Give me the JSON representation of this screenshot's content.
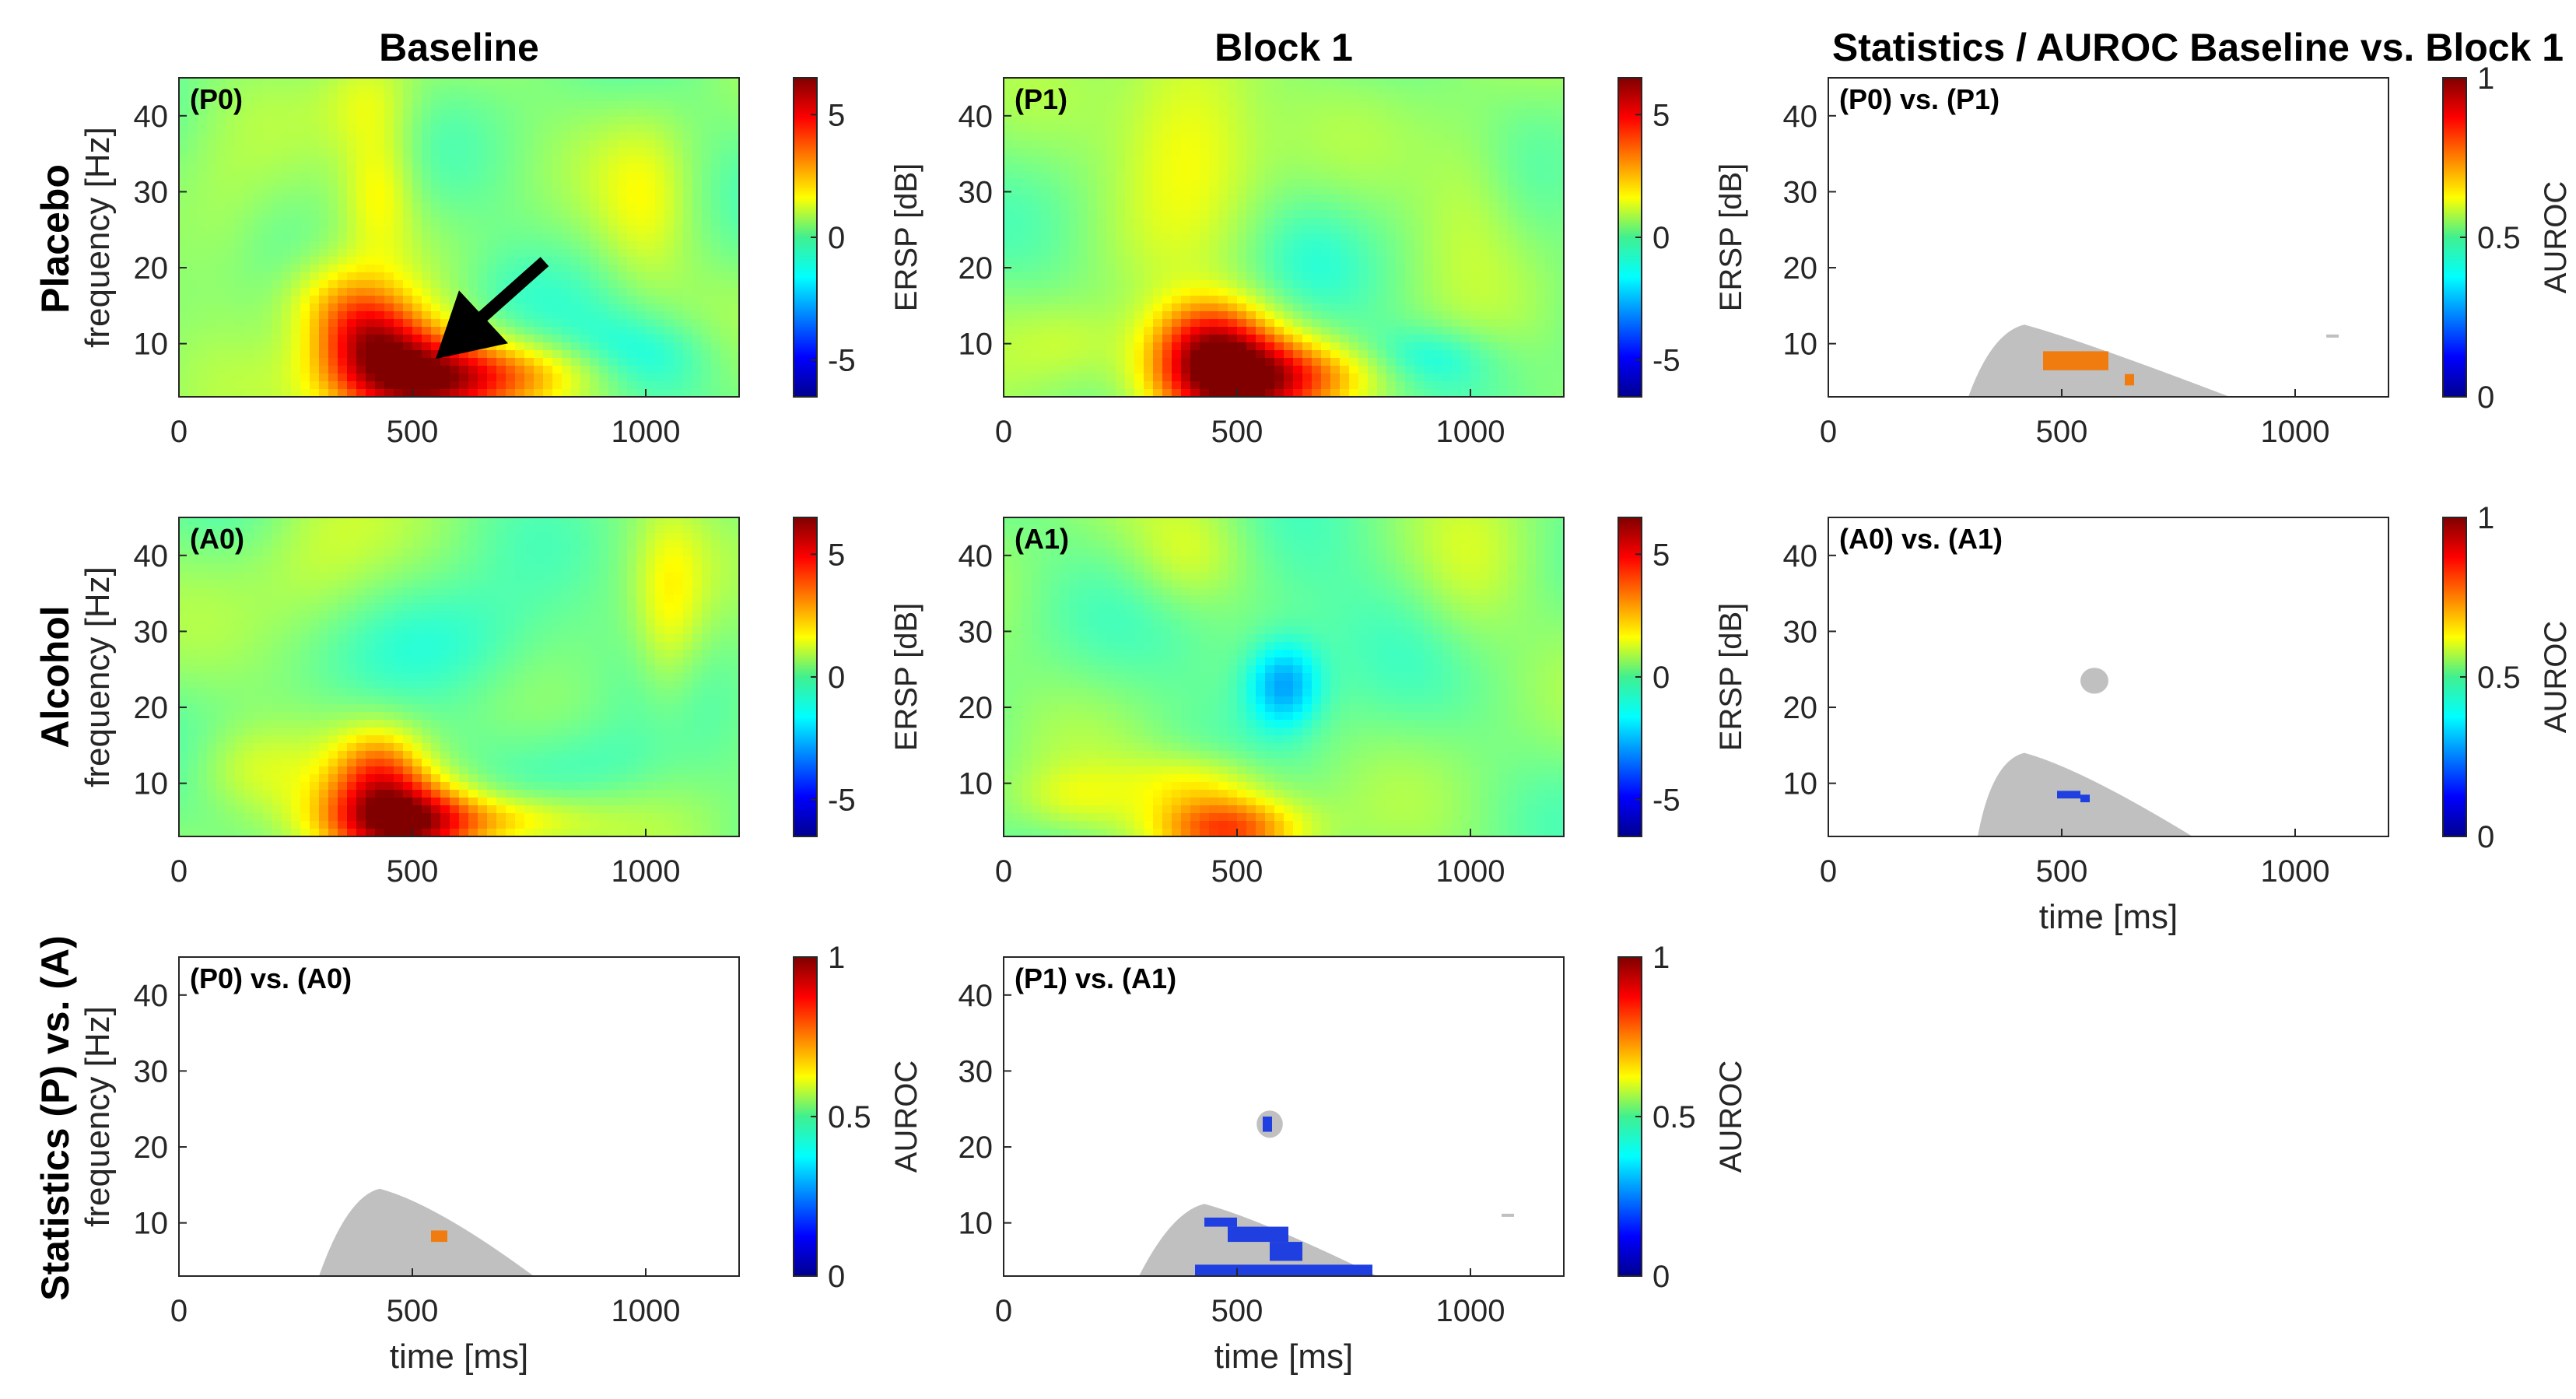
{
  "figure": {
    "column_titles": [
      "Baseline",
      "Block 1",
      "Statistics / AUROC Baseline vs. Block 1"
    ],
    "row_titles": [
      "Placebo",
      "Alcohol",
      "Statistics (P) vs. (A)"
    ],
    "colors": {
      "significant_mask": "#c0c0c0",
      "auroc_high": "#f07c10",
      "auroc_low": "#1f3fe0",
      "arrow": "#000000"
    }
  },
  "chart_data": [
    {
      "id": "P0",
      "type": "heatmap",
      "panel_label": "(P0)",
      "xlabel": "",
      "ylabel": "frequency [Hz]",
      "xlim": [
        0,
        1200
      ],
      "ylim": [
        3,
        45
      ],
      "xticks": [
        0,
        500,
        1000
      ],
      "yticks": [
        10,
        20,
        30,
        40
      ],
      "colorbar": {
        "label": "ERSP [dB]",
        "range": [
          -6.5,
          6.5
        ],
        "ticks": [
          -5,
          0,
          5
        ],
        "colormap": "jet"
      },
      "annotation": {
        "type": "arrow",
        "points_to_ms": 550,
        "points_to_hz": 8
      },
      "blobs": [
        {
          "t": 500,
          "f": 5,
          "st": 130,
          "sf": 4.5,
          "v": 6.3
        },
        {
          "t": 410,
          "f": 11,
          "st": 80,
          "sf": 4,
          "v": 3.5
        },
        {
          "t": 720,
          "f": 6,
          "st": 150,
          "sf": 3,
          "v": 2.2
        },
        {
          "t": 340,
          "f": 16,
          "st": 90,
          "sf": 4,
          "v": 1.6
        },
        {
          "t": 430,
          "f": 30,
          "st": 55,
          "sf": 6,
          "v": 1.6
        },
        {
          "t": 410,
          "f": 42,
          "st": 70,
          "sf": 5,
          "v": 1.2
        },
        {
          "t": 1000,
          "f": 28,
          "st": 70,
          "sf": 8,
          "v": 1.2
        },
        {
          "t": 100,
          "f": 24,
          "st": 80,
          "sf": 8,
          "v": 0.8
        },
        {
          "t": 1000,
          "f": 8,
          "st": 120,
          "sf": 4,
          "v": -1.4
        },
        {
          "t": 700,
          "f": 16,
          "st": 100,
          "sf": 5,
          "v": -0.6
        }
      ]
    },
    {
      "id": "P1",
      "type": "heatmap",
      "panel_label": "(P1)",
      "xlabel": "",
      "ylabel": "",
      "xlim": [
        0,
        1200
      ],
      "ylim": [
        3,
        45
      ],
      "xticks": [
        0,
        500,
        1000
      ],
      "yticks": [
        10,
        20,
        30,
        40
      ],
      "colorbar": {
        "label": "ERSP [dB]",
        "range": [
          -6.5,
          6.5
        ],
        "ticks": [
          -5,
          0,
          5
        ],
        "colormap": "jet"
      },
      "blobs": [
        {
          "t": 480,
          "f": 5,
          "st": 120,
          "sf": 4.5,
          "v": 6.4
        },
        {
          "t": 440,
          "f": 11,
          "st": 90,
          "sf": 4,
          "v": 3.4
        },
        {
          "t": 400,
          "f": 38,
          "st": 110,
          "sf": 9,
          "v": 2.0
        },
        {
          "t": 680,
          "f": 6,
          "st": 130,
          "sf": 3,
          "v": 1.8
        },
        {
          "t": 150,
          "f": 10,
          "st": 90,
          "sf": 4,
          "v": 0.9
        },
        {
          "t": 1000,
          "f": 30,
          "st": 80,
          "sf": 8,
          "v": 0.9
        },
        {
          "t": 900,
          "f": 8,
          "st": 110,
          "sf": 3,
          "v": -1.4
        },
        {
          "t": 650,
          "f": 22,
          "st": 90,
          "sf": 6,
          "v": -0.5
        }
      ]
    },
    {
      "id": "P0vsP1",
      "type": "heatmap",
      "panel_label": "(P0) vs. (P1)",
      "xlabel": "",
      "ylabel": "",
      "xlim": [
        0,
        1200
      ],
      "ylim": [
        3,
        45
      ],
      "xticks": [
        0,
        500,
        1000
      ],
      "yticks": [
        10,
        20,
        30,
        40
      ],
      "colorbar": {
        "label": "AUROC",
        "range": [
          0,
          1
        ],
        "ticks": [
          0,
          0.5,
          1
        ],
        "colormap": "jet"
      },
      "mask": {
        "peak_ms": 420,
        "peak_hz": 12.5,
        "start_ms": 300,
        "end_ms": 860
      },
      "highlights": [
        {
          "t0": 460,
          "t1": 600,
          "f0": 6.5,
          "f1": 9,
          "value": 0.75
        },
        {
          "t0": 635,
          "t1": 655,
          "f0": 4.5,
          "f1": 6,
          "value": 0.75
        }
      ],
      "specks": [
        {
          "t": 1080,
          "f": 11
        }
      ]
    },
    {
      "id": "A0",
      "type": "heatmap",
      "panel_label": "(A0)",
      "xlabel": "",
      "ylabel": "frequency [Hz]",
      "xlim": [
        0,
        1200
      ],
      "ylim": [
        3,
        45
      ],
      "xticks": [
        0,
        500,
        1000
      ],
      "yticks": [
        10,
        20,
        30,
        40
      ],
      "colorbar": {
        "label": "ERSP [dB]",
        "range": [
          -6.5,
          6.5
        ],
        "ticks": [
          -5,
          0,
          5
        ],
        "colormap": "jet"
      },
      "blobs": [
        {
          "t": 470,
          "f": 5,
          "st": 110,
          "sf": 4,
          "v": 6.2
        },
        {
          "t": 430,
          "f": 12,
          "st": 70,
          "sf": 4,
          "v": 2.8
        },
        {
          "t": 680,
          "f": 5,
          "st": 140,
          "sf": 2.5,
          "v": 2.2
        },
        {
          "t": 150,
          "f": 12,
          "st": 90,
          "sf": 4,
          "v": 1.0
        },
        {
          "t": 1050,
          "f": 33,
          "st": 50,
          "sf": 9,
          "v": 1.4
        },
        {
          "t": 300,
          "f": 38,
          "st": 100,
          "sf": 8,
          "v": 0.8
        },
        {
          "t": 620,
          "f": 28,
          "st": 140,
          "sf": 6,
          "v": -1.2
        },
        {
          "t": 900,
          "f": 12,
          "st": 120,
          "sf": 4,
          "v": -0.7
        }
      ]
    },
    {
      "id": "A1",
      "type": "heatmap",
      "panel_label": "(A1)",
      "xlabel": "",
      "ylabel": "",
      "xlim": [
        0,
        1200
      ],
      "ylim": [
        3,
        45
      ],
      "xticks": [
        0,
        500,
        1000
      ],
      "yticks": [
        10,
        20,
        30,
        40
      ],
      "colorbar": {
        "label": "ERSP [dB]",
        "range": [
          -6.5,
          6.5
        ],
        "ticks": [
          -5,
          0,
          5
        ],
        "colormap": "jet"
      },
      "blobs": [
        {
          "t": 480,
          "f": 4,
          "st": 110,
          "sf": 3,
          "v": 4.2
        },
        {
          "t": 420,
          "f": 10,
          "st": 110,
          "sf": 3,
          "v": 1.7
        },
        {
          "t": 150,
          "f": 8,
          "st": 90,
          "sf": 3,
          "v": 1.0
        },
        {
          "t": 600,
          "f": 23,
          "st": 55,
          "sf": 4,
          "v": -2.6
        },
        {
          "t": 400,
          "f": 40,
          "st": 90,
          "sf": 5,
          "v": 1.2
        },
        {
          "t": 1000,
          "f": 36,
          "st": 80,
          "sf": 8,
          "v": 0.7
        },
        {
          "t": 600,
          "f": 30,
          "st": 200,
          "sf": 8,
          "v": -0.8
        }
      ]
    },
    {
      "id": "A0vsA1",
      "type": "heatmap",
      "panel_label": "(A0) vs. (A1)",
      "xlabel": "time [ms]",
      "ylabel": "",
      "xlim": [
        0,
        1200
      ],
      "ylim": [
        3,
        45
      ],
      "xticks": [
        0,
        500,
        1000
      ],
      "yticks": [
        10,
        20,
        30,
        40
      ],
      "colorbar": {
        "label": "AUROC",
        "range": [
          0,
          1
        ],
        "ticks": [
          0,
          0.5,
          1
        ],
        "colormap": "jet"
      },
      "mask": {
        "peak_ms": 420,
        "peak_hz": 14,
        "start_ms": 320,
        "end_ms": 780
      },
      "islands": [
        {
          "t": 570,
          "f": 23.5,
          "rt": 30,
          "rf": 1.7
        }
      ],
      "highlights": [
        {
          "t0": 490,
          "t1": 540,
          "f0": 8,
          "f1": 9,
          "value": 0.15
        },
        {
          "t0": 540,
          "t1": 560,
          "f0": 7.5,
          "f1": 8.5,
          "value": 0.15
        }
      ]
    },
    {
      "id": "P0vsA0",
      "type": "heatmap",
      "panel_label": "(P0) vs. (A0)",
      "xlabel": "time [ms]",
      "ylabel": "frequency [Hz]",
      "xlim": [
        0,
        1200
      ],
      "ylim": [
        3,
        45
      ],
      "xticks": [
        0,
        500,
        1000
      ],
      "yticks": [
        10,
        20,
        30,
        40
      ],
      "colorbar": {
        "label": "AUROC",
        "range": [
          0,
          1
        ],
        "ticks": [
          0,
          0.5,
          1
        ],
        "colormap": "jet"
      },
      "mask": {
        "peak_ms": 430,
        "peak_hz": 14.5,
        "start_ms": 300,
        "end_ms": 760
      },
      "highlights": [
        {
          "t0": 540,
          "t1": 575,
          "f0": 7.5,
          "f1": 9,
          "value": 0.78
        }
      ]
    },
    {
      "id": "P1vsA1",
      "type": "heatmap",
      "panel_label": "(P1) vs. (A1)",
      "xlabel": "time [ms]",
      "ylabel": "",
      "xlim": [
        0,
        1200
      ],
      "ylim": [
        3,
        45
      ],
      "xticks": [
        0,
        500,
        1000
      ],
      "yticks": [
        10,
        20,
        30,
        40
      ],
      "colorbar": {
        "label": "AUROC",
        "range": [
          0,
          1
        ],
        "ticks": [
          0,
          0.5,
          1
        ],
        "colormap": "jet"
      },
      "mask": {
        "peak_ms": 430,
        "peak_hz": 12.5,
        "start_ms": 290,
        "end_ms": 800
      },
      "islands": [
        {
          "t": 570,
          "f": 23,
          "rt": 28,
          "rf": 1.8
        }
      ],
      "highlights": [
        {
          "t0": 430,
          "t1": 500,
          "f0": 9.5,
          "f1": 10.7,
          "value": 0.15
        },
        {
          "t0": 480,
          "t1": 610,
          "f0": 7.5,
          "f1": 9.5,
          "value": 0.15
        },
        {
          "t0": 570,
          "t1": 640,
          "f0": 5,
          "f1": 7.5,
          "value": 0.15
        },
        {
          "t0": 410,
          "t1": 790,
          "f0": 3,
          "f1": 4.5,
          "value": 0.15
        },
        {
          "t0": 555,
          "t1": 575,
          "f0": 22,
          "f1": 24,
          "value": 0.15
        }
      ],
      "specks": [
        {
          "t": 1080,
          "f": 11
        }
      ]
    }
  ]
}
